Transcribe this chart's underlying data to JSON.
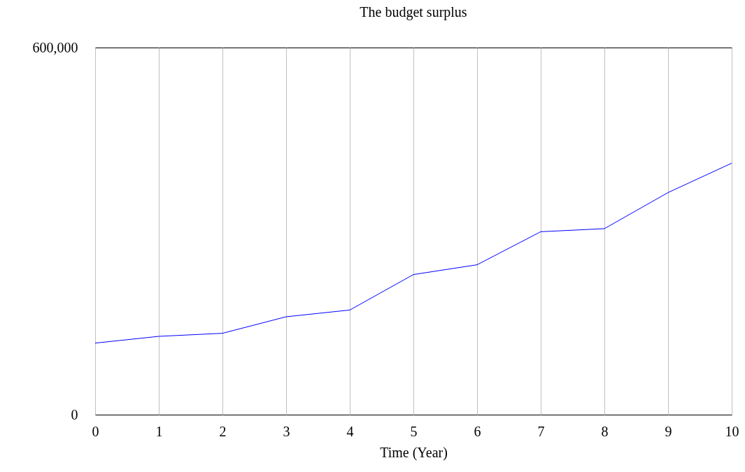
{
  "chart_data": {
    "type": "line",
    "title": "The budget surplus",
    "xlabel": "Time (Year)",
    "x": [
      0,
      1,
      2,
      3,
      4,
      5,
      6,
      7,
      8,
      9,
      10
    ],
    "series": [
      {
        "color": "#0000ff",
        "values": [
          117000,
          128000,
          133000,
          160000,
          171000,
          229000,
          245000,
          299000,
          304000,
          363000,
          411000
        ]
      }
    ],
    "xlim": [
      0,
      10
    ],
    "xticks": [
      0,
      1,
      2,
      3,
      4,
      5,
      6,
      7,
      8,
      9,
      10
    ],
    "ylim": [
      0,
      600000
    ],
    "yticks": [
      {
        "value": 0,
        "label": "0"
      },
      {
        "value": 600000,
        "label": "600,000"
      }
    ],
    "grid": "x",
    "legend": false,
    "marker": "none",
    "line_style": "solid"
  }
}
